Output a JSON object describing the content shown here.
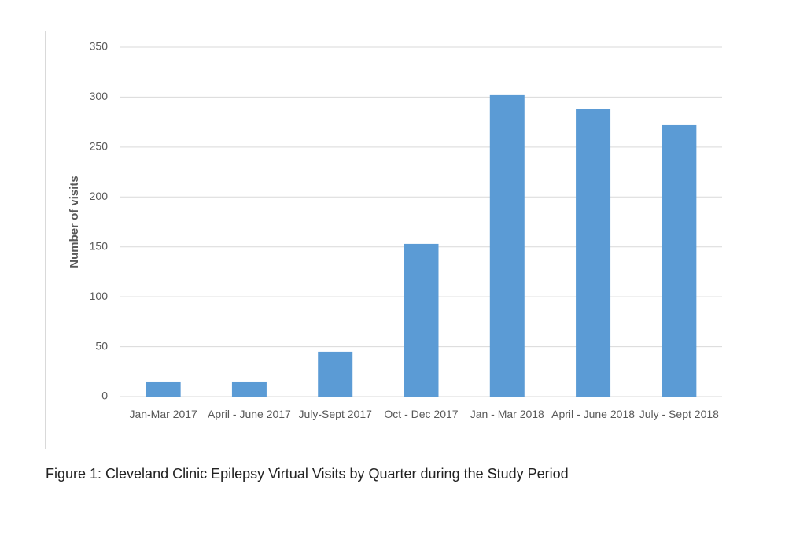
{
  "chart_data": {
    "type": "bar",
    "y_label": "Number of visits",
    "caption": "Figure 1: Cleveland Clinic Epilepsy Virtual Visits by Quarter during the Study Period",
    "categories": [
      "Jan-Mar 2017",
      "April - June 2017",
      "July-Sept 2017",
      "Oct - Dec 2017",
      "Jan - Mar 2018",
      "April - June 2018",
      "July - Sept 2018"
    ],
    "values": [
      15,
      15,
      45,
      153,
      302,
      288,
      272
    ],
    "color": "#5b9bd5",
    "ylim": [
      0,
      350
    ],
    "yticks": [
      0,
      50,
      100,
      150,
      200,
      250,
      300,
      350
    ],
    "grid": true
  }
}
